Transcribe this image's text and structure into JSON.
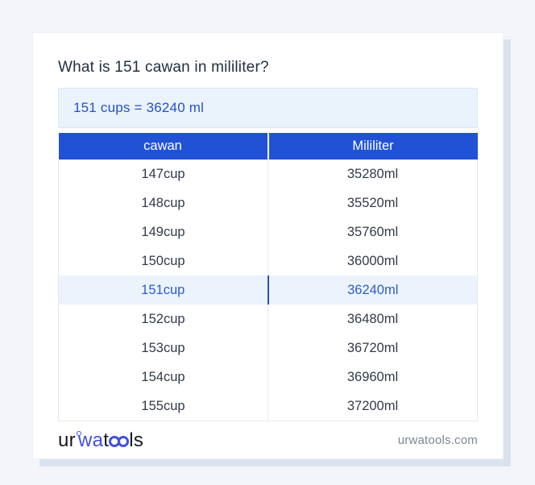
{
  "page_title": "What is 151 cawan in mililiter?",
  "result_box": {
    "text": "151 cups = 36240 ml"
  },
  "table": {
    "headers": [
      "cawan",
      "Mililiter"
    ],
    "rows": [
      {
        "cawan": "147cup",
        "mililiter": "35280ml",
        "highlight": false
      },
      {
        "cawan": "148cup",
        "mililiter": "35520ml",
        "highlight": false
      },
      {
        "cawan": "149cup",
        "mililiter": "35760ml",
        "highlight": false
      },
      {
        "cawan": "150cup",
        "mililiter": "36000ml",
        "highlight": false
      },
      {
        "cawan": "151cup",
        "mililiter": "36240ml",
        "highlight": true
      },
      {
        "cawan": "152cup",
        "mililiter": "36480ml",
        "highlight": false
      },
      {
        "cawan": "153cup",
        "mililiter": "36720ml",
        "highlight": false
      },
      {
        "cawan": "154cup",
        "mililiter": "36960ml",
        "highlight": false
      },
      {
        "cawan": "155cup",
        "mililiter": "37200ml",
        "highlight": false
      }
    ]
  },
  "footer": {
    "brand": "urwatools",
    "logo_parts": {
      "p1": "ur",
      "p2": "wa",
      "p3": "t",
      "p4": "ls"
    },
    "website": "urwatools.com"
  },
  "colors": {
    "header_blue": "#2152d6",
    "result_bg": "#eaf2fc",
    "result_text_blue": "#2453c6",
    "highlight_bg": "#ecf3fd",
    "highlight_text": "#2b5dc8",
    "logo_blue": "#4150e0",
    "page_bg": "#f3f5fb",
    "card_shadow": "#dbe2ef"
  }
}
